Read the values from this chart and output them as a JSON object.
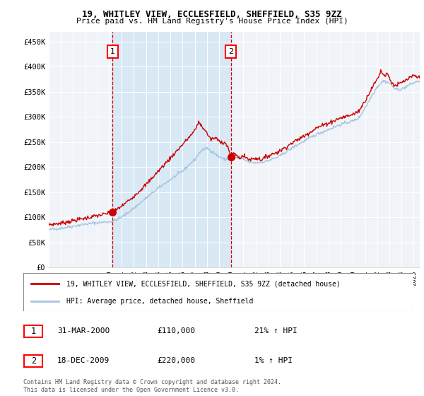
{
  "title1": "19, WHITLEY VIEW, ECCLESFIELD, SHEFFIELD, S35 9ZZ",
  "title2": "Price paid vs. HM Land Registry's House Price Index (HPI)",
  "ylabel_ticks": [
    "£0",
    "£50K",
    "£100K",
    "£150K",
    "£200K",
    "£250K",
    "£300K",
    "£350K",
    "£400K",
    "£450K"
  ],
  "ytick_vals": [
    0,
    50000,
    100000,
    150000,
    200000,
    250000,
    300000,
    350000,
    400000,
    450000
  ],
  "ylim": [
    0,
    470000
  ],
  "xlim_start": 1995.0,
  "xlim_end": 2025.5,
  "hpi_color": "#a8c4e0",
  "price_color": "#cc0000",
  "bg_color": "#f0f4f8",
  "shade_color": "#d8e8f5",
  "sale1_x": 2000.25,
  "sale1_y": 110000,
  "sale2_x": 2009.96,
  "sale2_y": 220000,
  "legend_line1": "19, WHITLEY VIEW, ECCLESFIELD, SHEFFIELD, S35 9ZZ (detached house)",
  "legend_line2": "HPI: Average price, detached house, Sheffield",
  "table_row1_date": "31-MAR-2000",
  "table_row1_price": "£110,000",
  "table_row1_hpi": "21% ↑ HPI",
  "table_row2_date": "18-DEC-2009",
  "table_row2_price": "£220,000",
  "table_row2_hpi": "1% ↑ HPI",
  "footnote": "Contains HM Land Registry data © Crown copyright and database right 2024.\nThis data is licensed under the Open Government Licence v3.0."
}
